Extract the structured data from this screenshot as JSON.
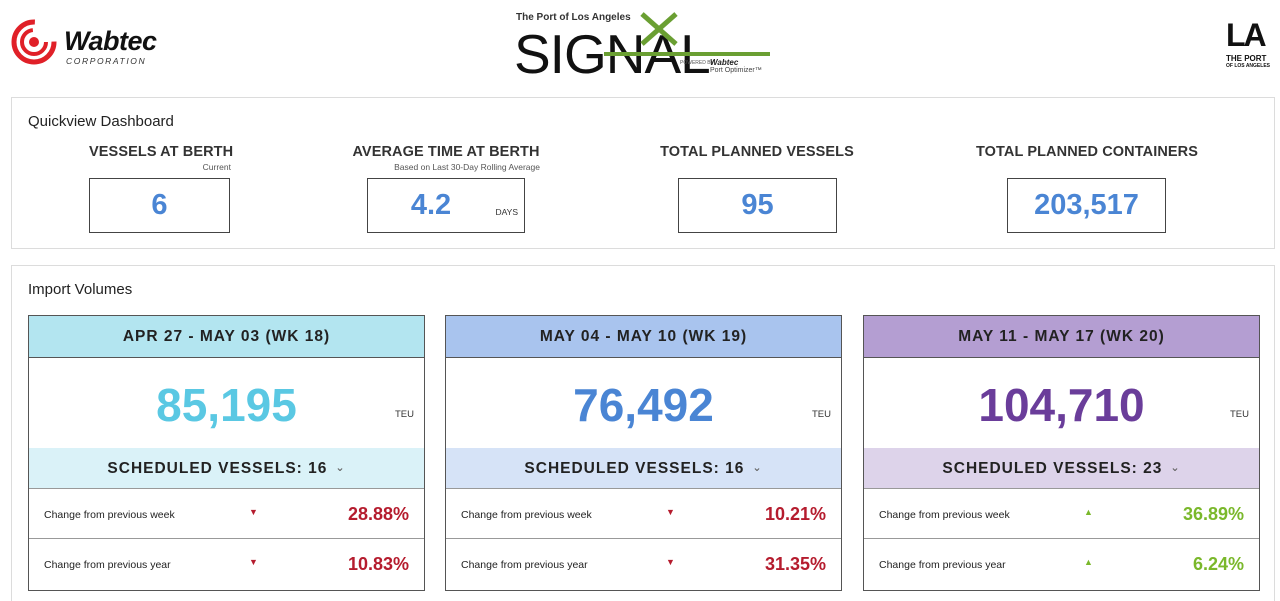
{
  "header": {
    "wabtec": {
      "name": "Wabtec",
      "corp": "CORPORATION"
    },
    "signal": {
      "subtitle": "The Port of Los Angeles",
      "word": "SIGNAL",
      "powered": "POWERED BY",
      "brand": "Wabtec",
      "product": "Port Optimizer™"
    },
    "la": {
      "letters": "LA",
      "line1": "THE PORT",
      "line2": "OF LOS ANGELES"
    }
  },
  "quickview": {
    "title": "Quickview Dashboard",
    "metrics": [
      {
        "label": "VESSELS AT BERTH",
        "sub": "Current",
        "value": "6",
        "unit": ""
      },
      {
        "label": "AVERAGE TIME AT BERTH",
        "sub": "Based on Last 30-Day Rolling Average",
        "value": "4.2",
        "unit": "DAYS"
      },
      {
        "label": "TOTAL PLANNED VESSELS",
        "sub": "",
        "value": "95",
        "unit": ""
      },
      {
        "label": "TOTAL PLANNED CONTAINERS",
        "sub": "",
        "value": "203,517",
        "unit": ""
      }
    ]
  },
  "imports": {
    "title": "Import Volumes",
    "weeks": [
      {
        "range": "APR 27 - MAY 03 (WK 18)",
        "value": "85,195",
        "unit": "TEU",
        "scheduled": "SCHEDULED VESSELS: 16",
        "header_color": "#b3e5f0",
        "sched_color": "#daf2f8",
        "value_color": "#5ac8e3",
        "rows": [
          {
            "label": "Change from previous week",
            "direction": "down",
            "value": "28.88%"
          },
          {
            "label": "Change from previous year",
            "direction": "down",
            "value": "10.83%"
          }
        ]
      },
      {
        "range": "MAY 04 - MAY 10 (WK 19)",
        "value": "76,492",
        "unit": "TEU",
        "scheduled": "SCHEDULED VESSELS: 16",
        "header_color": "#a9c4ee",
        "sched_color": "#d6e3f7",
        "value_color": "#4a85d4",
        "rows": [
          {
            "label": "Change from previous week",
            "direction": "down",
            "value": "10.21%"
          },
          {
            "label": "Change from previous year",
            "direction": "down",
            "value": "31.35%"
          }
        ]
      },
      {
        "range": "MAY 11 - MAY 17 (WK 20)",
        "value": "104,710",
        "unit": "TEU",
        "scheduled": "SCHEDULED VESSELS: 23",
        "header_color": "#b49ed2",
        "sched_color": "#ddd3ea",
        "value_color": "#6a3d9a",
        "rows": [
          {
            "label": "Change from previous week",
            "direction": "up",
            "value": "36.89%"
          },
          {
            "label": "Change from previous year",
            "direction": "up",
            "value": "6.24%"
          }
        ]
      }
    ]
  }
}
